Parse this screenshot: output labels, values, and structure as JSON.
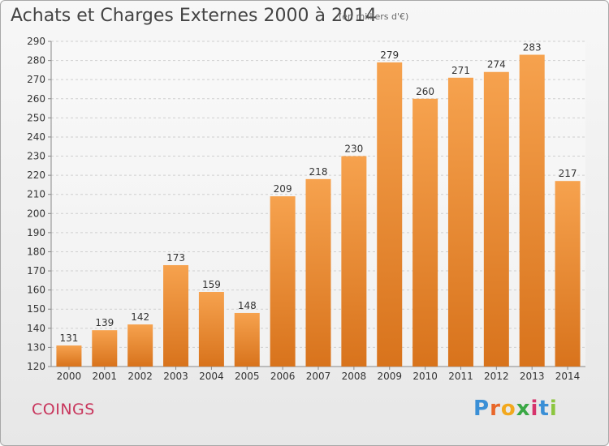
{
  "title": "Achats et Charges Externes 2000 à 2014",
  "subtitle": "(en milliers d'€)",
  "commune": "COINGS",
  "logo": {
    "letters": [
      "P",
      "r",
      "o",
      "x",
      "i",
      "t",
      "i"
    ],
    "colors": [
      "#3a8fd6",
      "#e8672a",
      "#f2a81d",
      "#3aa845",
      "#d6336c",
      "#3a8fd6",
      "#8cc63f"
    ]
  },
  "colors": {
    "bar_top": "#f6a24e",
    "bar_bottom": "#d8731c",
    "axis_text": "#333333",
    "title": "#444444",
    "commune": "#c8355c"
  },
  "chart_data": {
    "type": "bar",
    "categories": [
      "2000",
      "2001",
      "2002",
      "2003",
      "2004",
      "2005",
      "2006",
      "2007",
      "2008",
      "2009",
      "2010",
      "2011",
      "2012",
      "2013",
      "2014"
    ],
    "values": [
      131,
      139,
      142,
      173,
      159,
      148,
      209,
      218,
      230,
      279,
      260,
      271,
      274,
      283,
      217
    ],
    "ylim": [
      120,
      290
    ],
    "yticks": [
      120,
      130,
      140,
      150,
      160,
      170,
      180,
      190,
      200,
      210,
      220,
      230,
      240,
      250,
      260,
      270,
      280,
      290
    ],
    "grid": true
  }
}
